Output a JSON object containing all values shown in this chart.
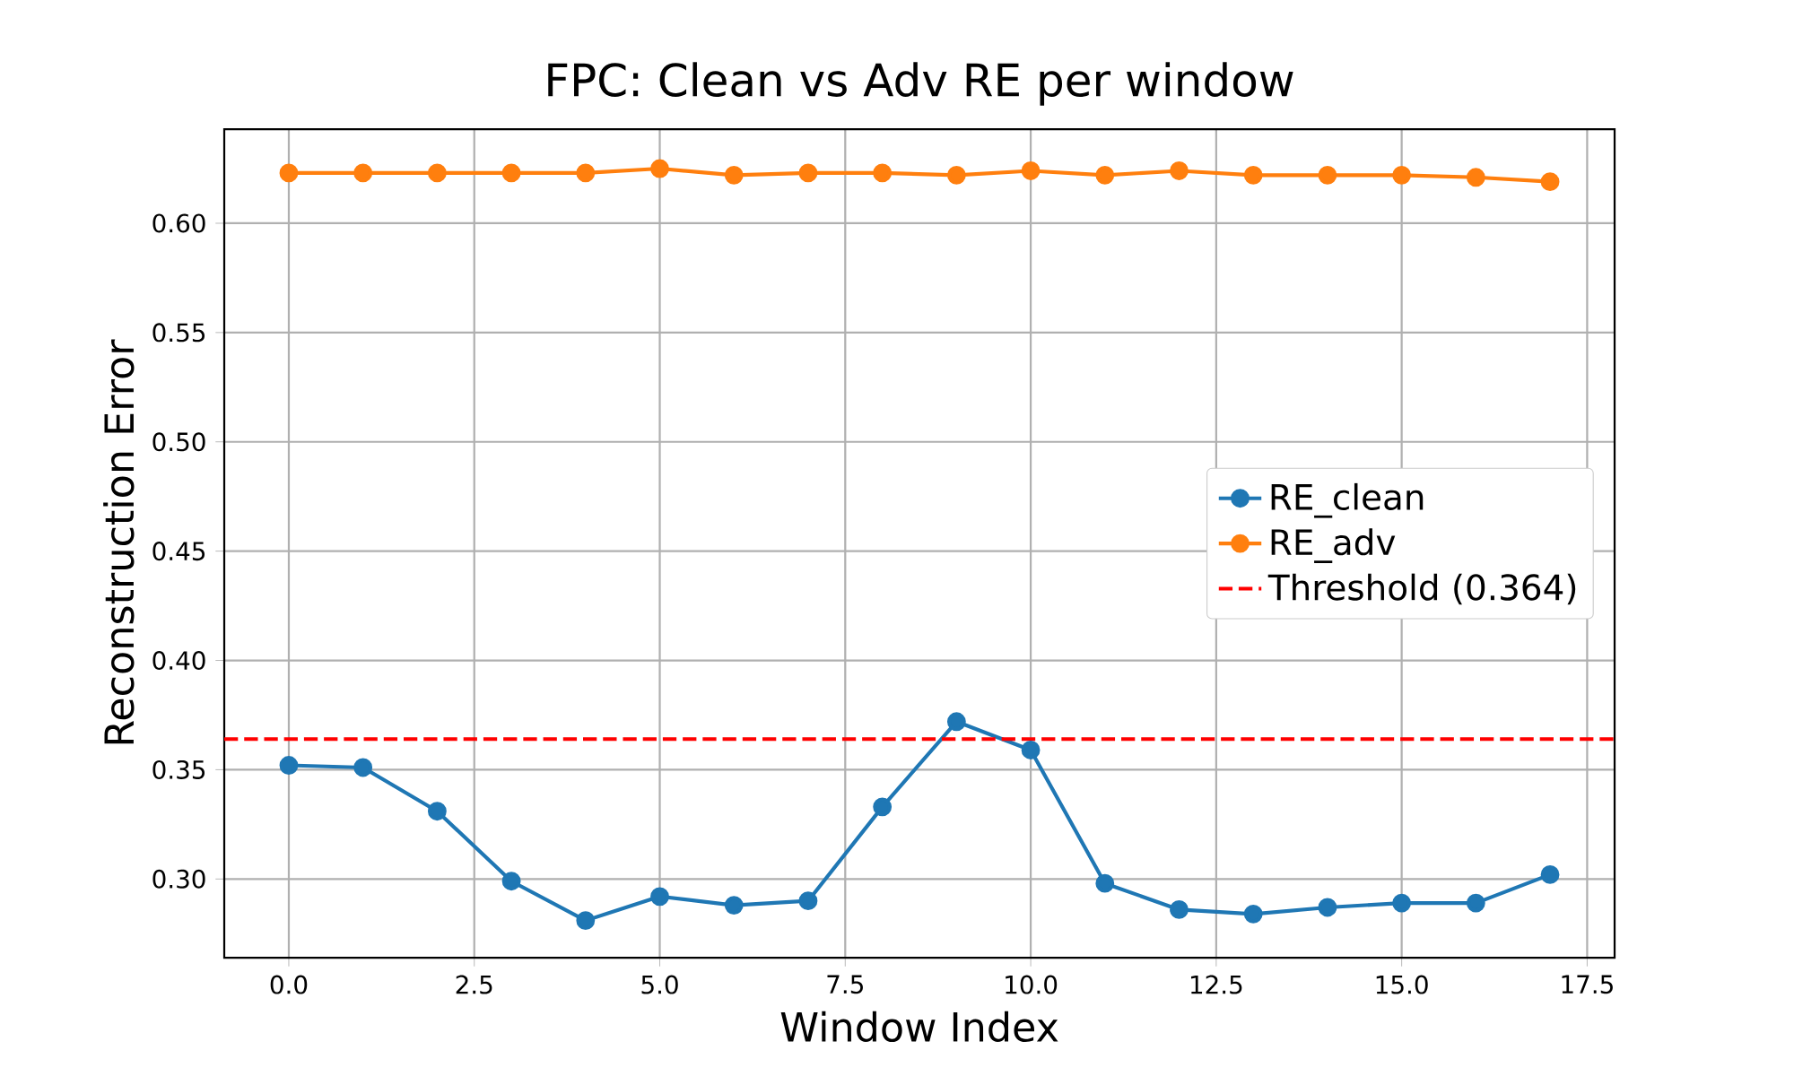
{
  "chart_data": {
    "type": "line",
    "title": "FPC: Clean vs Adv RE per window",
    "xlabel": "Window Index",
    "ylabel": "Reconstruction Error",
    "x": [
      0,
      1,
      2,
      3,
      4,
      5,
      6,
      7,
      8,
      9,
      10,
      11,
      12,
      13,
      14,
      15,
      16,
      17
    ],
    "series": [
      {
        "name": "RE_clean",
        "color": "#1f77b4",
        "values": [
          0.352,
          0.351,
          0.331,
          0.299,
          0.281,
          0.292,
          0.288,
          0.29,
          0.333,
          0.372,
          0.359,
          0.298,
          0.286,
          0.284,
          0.287,
          0.289,
          0.289,
          0.302
        ]
      },
      {
        "name": "RE_adv",
        "color": "#ff7f0e",
        "values": [
          0.623,
          0.623,
          0.623,
          0.623,
          0.623,
          0.625,
          0.622,
          0.623,
          0.623,
          0.622,
          0.624,
          0.622,
          0.624,
          0.622,
          0.622,
          0.622,
          0.621,
          0.619
        ]
      }
    ],
    "ref_lines": [
      {
        "axis": "y",
        "value": 0.364,
        "label": "Threshold (0.364)",
        "color": "#ff0000",
        "line_style": "dashed"
      }
    ],
    "xlim": [
      -0.87,
      17.87
    ],
    "ylim": [
      0.264,
      0.643
    ],
    "xticks": [
      {
        "value": 0,
        "label": "0.0"
      },
      {
        "value": 2.5,
        "label": "2.5"
      },
      {
        "value": 5,
        "label": "5.0"
      },
      {
        "value": 7.5,
        "label": "7.5"
      },
      {
        "value": 10,
        "label": "10.0"
      },
      {
        "value": 12.5,
        "label": "12.5"
      },
      {
        "value": 15,
        "label": "15.0"
      },
      {
        "value": 17.5,
        "label": "17.5"
      }
    ],
    "yticks": [
      {
        "value": 0.3,
        "label": "0.30"
      },
      {
        "value": 0.35,
        "label": "0.35"
      },
      {
        "value": 0.4,
        "label": "0.40"
      },
      {
        "value": 0.45,
        "label": "0.45"
      },
      {
        "value": 0.5,
        "label": "0.50"
      },
      {
        "value": 0.55,
        "label": "0.55"
      },
      {
        "value": 0.6,
        "label": "0.60"
      }
    ],
    "grid": true,
    "legend": "right",
    "marker": "circle",
    "line_style": "solid"
  }
}
